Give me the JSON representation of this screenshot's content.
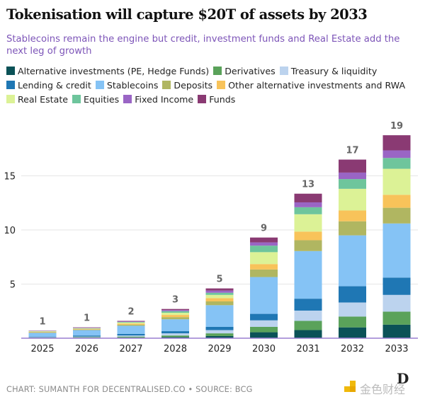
{
  "title": "Tokenisation will capture $20T of assets by 2033",
  "subtitle": "Stablecoins remain the engine but credit, investment funds and Real Estate add the next leg of growth",
  "footer": "CHART: SUMANTH FOR DECENTRALISED.CO • SOURCE: BCG",
  "watermark": "金色财经",
  "chart_data": {
    "type": "bar",
    "stacked": true,
    "title": "Tokenisation will capture $20T of assets by 2033",
    "xlabel": "",
    "ylabel": "",
    "ylim": [
      0,
      19.5
    ],
    "yticks": [
      5,
      10,
      15
    ],
    "grid": true,
    "legend_placement": "top",
    "categories": [
      "2025",
      "2026",
      "2027",
      "2028",
      "2029",
      "2030",
      "2031",
      "2032",
      "2033"
    ],
    "total_labels": [
      "1",
      "1",
      "2",
      "3",
      "5",
      "9",
      "13",
      "17",
      "19"
    ],
    "series": [
      {
        "name": "Alternative investments (PE, Hedge Funds)",
        "color": "#0b5257",
        "values": [
          0.03,
          0.05,
          0.05,
          0.1,
          0.2,
          0.55,
          0.75,
          1.0,
          1.25
        ]
      },
      {
        "name": "Derivatives",
        "color": "#5aa25a",
        "values": [
          0.03,
          0.05,
          0.1,
          0.15,
          0.25,
          0.5,
          0.85,
          1.0,
          1.2
        ]
      },
      {
        "name": "Treasury & liquidity",
        "color": "#bcd3ee",
        "values": [
          0.04,
          0.05,
          0.1,
          0.2,
          0.3,
          0.6,
          0.95,
          1.3,
          1.55
        ]
      },
      {
        "name": "Lending & credit",
        "color": "#1f77b4",
        "values": [
          0.05,
          0.1,
          0.15,
          0.2,
          0.3,
          0.6,
          1.1,
          1.5,
          1.6
        ]
      },
      {
        "name": "Stablecoins",
        "color": "#85c3f5",
        "values": [
          0.35,
          0.5,
          0.75,
          1.1,
          2.0,
          3.4,
          4.4,
          4.7,
          5.0
        ]
      },
      {
        "name": "Deposits",
        "color": "#b0b661",
        "values": [
          0.05,
          0.05,
          0.1,
          0.2,
          0.35,
          0.7,
          1.0,
          1.3,
          1.45
        ]
      },
      {
        "name": "Other alternative investments and RWA",
        "color": "#f8c35a",
        "values": [
          0.05,
          0.05,
          0.1,
          0.2,
          0.3,
          0.5,
          0.8,
          1.0,
          1.2
        ]
      },
      {
        "name": "Real Estate",
        "color": "#dcf296",
        "values": [
          0.04,
          0.05,
          0.1,
          0.2,
          0.3,
          1.1,
          1.6,
          2.0,
          2.4
        ]
      },
      {
        "name": "Equities",
        "color": "#6ec59c",
        "values": [
          0.02,
          0.03,
          0.05,
          0.15,
          0.2,
          0.6,
          0.65,
          0.9,
          1.0
        ]
      },
      {
        "name": "Fixed Income",
        "color": "#9a65c5",
        "values": [
          0.02,
          0.03,
          0.05,
          0.1,
          0.2,
          0.3,
          0.45,
          0.6,
          0.7
        ]
      },
      {
        "name": "Funds",
        "color": "#8a3a73",
        "values": [
          0.02,
          0.04,
          0.05,
          0.1,
          0.2,
          0.45,
          0.8,
          1.2,
          1.4
        ]
      }
    ]
  }
}
